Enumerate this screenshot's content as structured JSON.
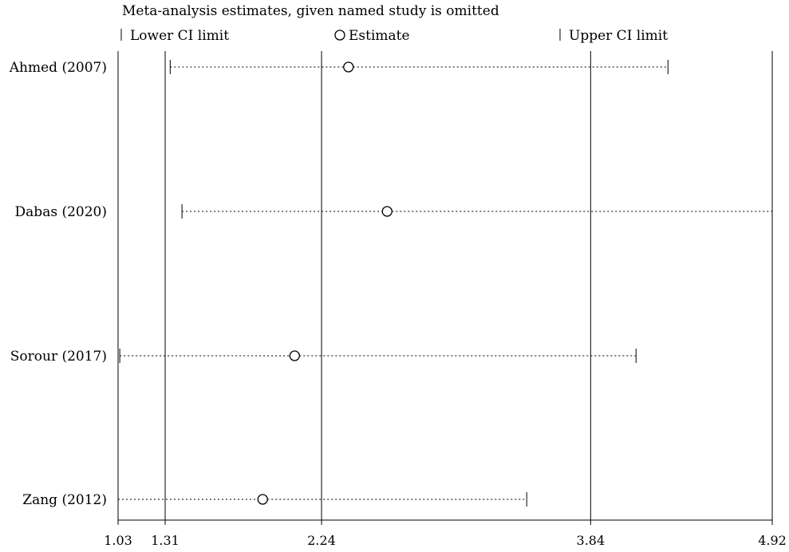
{
  "chart_data": {
    "type": "forest",
    "title": "Meta-analysis estimates, given named study is omitted",
    "legend": {
      "lower": "Lower CI limit",
      "estimate": "Estimate",
      "upper": "Upper CI limit"
    },
    "xlim": [
      1.03,
      4.92
    ],
    "xticks": [
      "1.03",
      "1.31",
      "2.24",
      "3.84",
      "4.92"
    ],
    "reference_lines": [
      1.31,
      2.24,
      3.84
    ],
    "studies": [
      {
        "name": "Ahmed (2007)",
        "lower": 1.34,
        "estimate": 2.4,
        "upper": 4.3
      },
      {
        "name": "Dabas (2020)",
        "lower": 1.41,
        "estimate": 2.63,
        "upper": 4.92
      },
      {
        "name": "Sorour (2017)",
        "lower": 1.04,
        "estimate": 2.08,
        "upper": 4.11
      },
      {
        "name": "Zang (2012)",
        "lower": 1.03,
        "estimate": 1.89,
        "upper": 3.46
      }
    ]
  }
}
